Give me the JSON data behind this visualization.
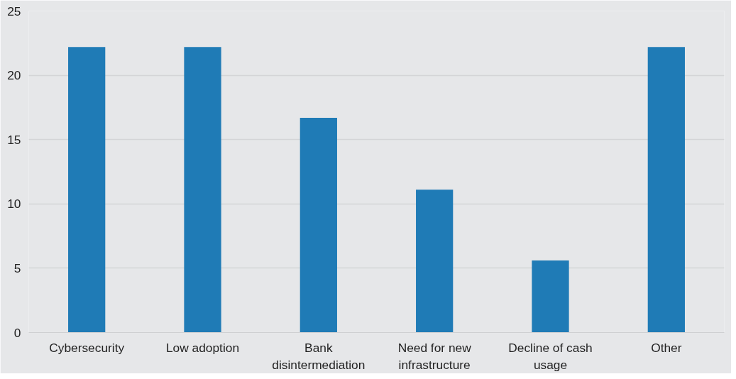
{
  "chart_data": {
    "type": "bar",
    "categories": [
      "Cybersecurity",
      "Low adoption",
      "Bank disintermediation",
      "Need for new infrastructure",
      "Decline of cash usage",
      "Other"
    ],
    "values": [
      22.2,
      22.2,
      16.7,
      11.1,
      5.6,
      22.2
    ],
    "color": "#1f7bb6",
    "ylim": [
      0,
      25
    ],
    "yticks": [
      0,
      5,
      10,
      15,
      20,
      25
    ],
    "grid": "y"
  }
}
